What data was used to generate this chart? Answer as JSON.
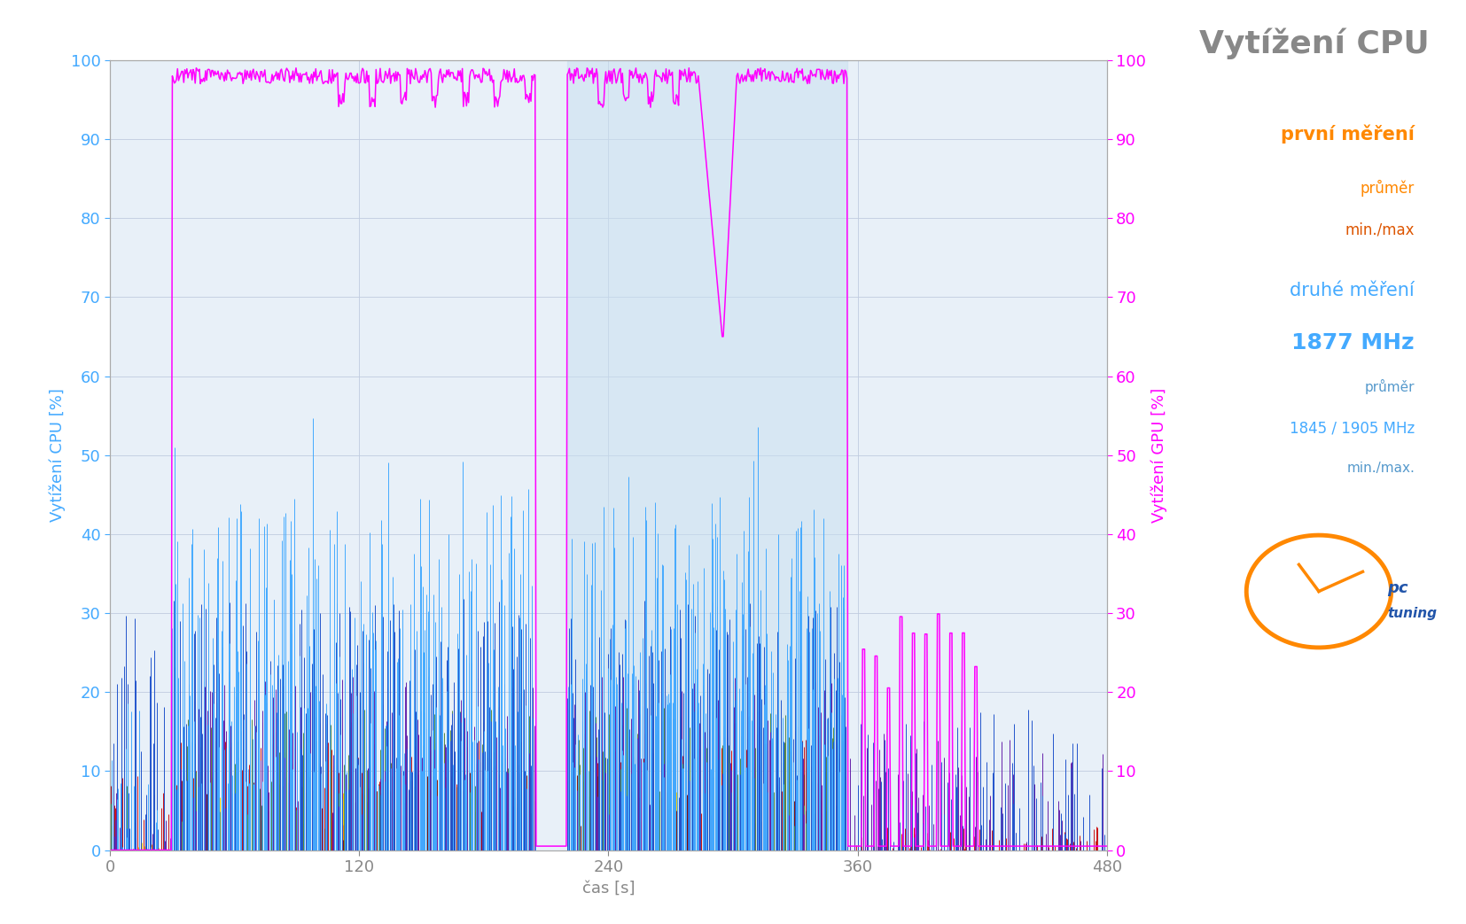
{
  "title": "Vytížení CPU",
  "subtitle1": "první měření",
  "legend_avg1": "průměr",
  "legend_minmax1": "min./max",
  "legend_subtitle2": "druhé měření",
  "legend_freq": "1877 MHz",
  "legend_avg2": "průměr",
  "legend_minmax2": "1845 / 1905 MHz",
  "legend_minmax2b": "min./max.",
  "ylabel_left": "Vytížení CPU [%]",
  "ylabel_right": "Vytížení GPU [%]",
  "xlabel": "čas [s]",
  "xlim": [
    0,
    480
  ],
  "ylim": [
    0,
    100
  ],
  "xticks": [
    0,
    120,
    240,
    360,
    480
  ],
  "yticks": [
    0,
    10,
    20,
    30,
    40,
    50,
    60,
    70,
    80,
    90,
    100
  ],
  "plot_bg": "#e8f0f8",
  "shade_color": "#c8dff0",
  "shade_start": 220,
  "shade_end": 355,
  "gpu_line_color": "#ff00ff",
  "title_color": "#888888",
  "colors": {
    "yellow": "#ffcc00",
    "orange": "#ff8800",
    "red": "#cc1111",
    "darkred": "#881100",
    "green": "#558844",
    "purple": "#6622aa",
    "blue": "#2255cc",
    "lightblue": "#44aaff"
  },
  "n_points": 960,
  "seed": 7,
  "active1_start": 30,
  "active1_end": 205,
  "active2_start": 220,
  "active2_end": 355
}
